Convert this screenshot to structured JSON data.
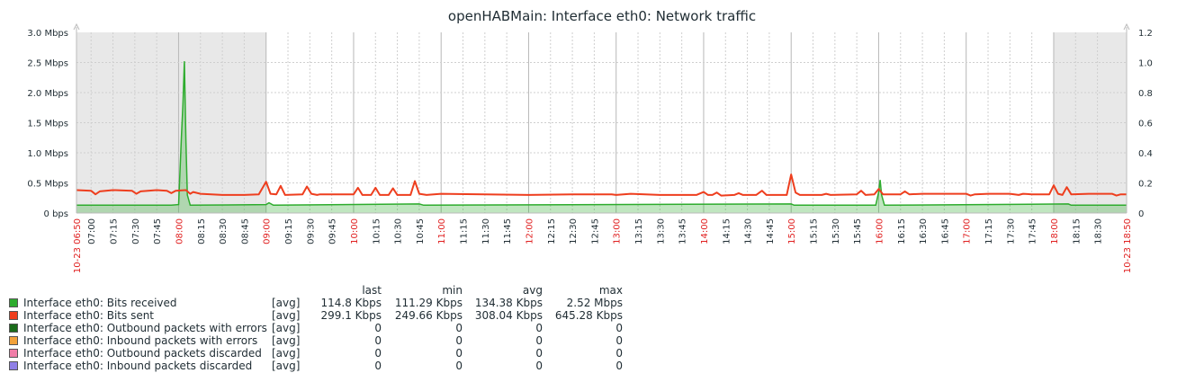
{
  "chart_data": {
    "type": "area",
    "title": "openHABMain: Interface eth0: Network traffic",
    "x_start_label": "10-23 06:50",
    "x_end_label": "10-23 18:50",
    "x_range": [
      "06:50",
      "18:50"
    ],
    "x_ticks": [
      "07:00",
      "07:15",
      "07:30",
      "07:45",
      "08:00",
      "08:15",
      "08:30",
      "08:45",
      "09:00",
      "09:15",
      "09:30",
      "09:45",
      "10:00",
      "10:15",
      "10:30",
      "10:45",
      "11:00",
      "11:15",
      "11:30",
      "11:45",
      "12:00",
      "12:15",
      "12:30",
      "12:45",
      "13:00",
      "13:15",
      "13:30",
      "13:45",
      "14:00",
      "14:15",
      "14:30",
      "14:45",
      "15:00",
      "15:15",
      "15:30",
      "15:45",
      "16:00",
      "16:15",
      "16:30",
      "16:45",
      "17:00",
      "17:15",
      "17:30",
      "17:45",
      "18:00",
      "18:15",
      "18:30"
    ],
    "x_ticks_highlighted": [
      "08:00",
      "09:00",
      "10:00",
      "11:00",
      "12:00",
      "13:00",
      "14:00",
      "15:00",
      "16:00",
      "17:00",
      "18:00"
    ],
    "y_left": {
      "unit": "Mbps",
      "range": [
        0,
        3.0
      ],
      "ticks": [
        "0 bps",
        "0.5 Mbps",
        "1.0 Mbps",
        "1.5 Mbps",
        "2.0 Mbps",
        "2.5 Mbps",
        "3.0 Mbps"
      ]
    },
    "y_right": {
      "range": [
        0,
        1.2
      ],
      "ticks": [
        "0",
        "0.2",
        "0.4",
        "0.6",
        "0.8",
        "1.0",
        "1.2"
      ]
    },
    "shaded_periods": [
      [
        "06:50",
        "09:00"
      ],
      [
        "18:00",
        "18:50"
      ]
    ],
    "grid": true,
    "series": [
      {
        "name": "Interface eth0: Bits received",
        "color": "#2eac2e",
        "style": "filled",
        "points": [
          [
            "06:50",
            0.13
          ],
          [
            "07:30",
            0.13
          ],
          [
            "07:55",
            0.13
          ],
          [
            "08:00",
            0.14
          ],
          [
            "08:02",
            1.3
          ],
          [
            "08:03",
            1.8
          ],
          [
            "08:04",
            2.52
          ],
          [
            "08:05",
            1.2
          ],
          [
            "08:06",
            0.3
          ],
          [
            "08:08",
            0.13
          ],
          [
            "09:00",
            0.14
          ],
          [
            "09:02",
            0.17
          ],
          [
            "09:05",
            0.13
          ],
          [
            "10:45",
            0.15
          ],
          [
            "10:48",
            0.13
          ],
          [
            "15:00",
            0.15
          ],
          [
            "15:02",
            0.13
          ],
          [
            "15:58",
            0.13
          ],
          [
            "16:00",
            0.35
          ],
          [
            "16:01",
            0.55
          ],
          [
            "16:02",
            0.3
          ],
          [
            "16:04",
            0.13
          ],
          [
            "18:10",
            0.15
          ],
          [
            "18:12",
            0.13
          ],
          [
            "18:50",
            0.13
          ]
        ]
      },
      {
        "name": "Interface eth0: Bits sent",
        "color": "#ee3e1e",
        "style": "line",
        "points": [
          [
            "06:50",
            0.38
          ],
          [
            "07:00",
            0.37
          ],
          [
            "07:03",
            0.31
          ],
          [
            "07:06",
            0.36
          ],
          [
            "07:15",
            0.38
          ],
          [
            "07:28",
            0.37
          ],
          [
            "07:31",
            0.32
          ],
          [
            "07:34",
            0.36
          ],
          [
            "07:45",
            0.38
          ],
          [
            "07:52",
            0.37
          ],
          [
            "07:55",
            0.33
          ],
          [
            "07:58",
            0.37
          ],
          [
            "08:05",
            0.38
          ],
          [
            "08:08",
            0.32
          ],
          [
            "08:10",
            0.35
          ],
          [
            "08:15",
            0.32
          ],
          [
            "08:30",
            0.3
          ],
          [
            "08:45",
            0.3
          ],
          [
            "08:55",
            0.31
          ],
          [
            "09:00",
            0.52
          ],
          [
            "09:03",
            0.32
          ],
          [
            "09:07",
            0.31
          ],
          [
            "09:10",
            0.45
          ],
          [
            "09:13",
            0.3
          ],
          [
            "09:25",
            0.31
          ],
          [
            "09:28",
            0.44
          ],
          [
            "09:31",
            0.32
          ],
          [
            "09:35",
            0.3
          ],
          [
            "09:37",
            0.31
          ],
          [
            "10:00",
            0.31
          ],
          [
            "10:03",
            0.42
          ],
          [
            "10:06",
            0.3
          ],
          [
            "10:12",
            0.3
          ],
          [
            "10:15",
            0.42
          ],
          [
            "10:18",
            0.3
          ],
          [
            "10:24",
            0.3
          ],
          [
            "10:27",
            0.41
          ],
          [
            "10:30",
            0.3
          ],
          [
            "10:39",
            0.3
          ],
          [
            "10:42",
            0.53
          ],
          [
            "10:45",
            0.32
          ],
          [
            "10:50",
            0.3
          ],
          [
            "11:00",
            0.32
          ],
          [
            "11:30",
            0.31
          ],
          [
            "12:00",
            0.3
          ],
          [
            "12:30",
            0.31
          ],
          [
            "12:57",
            0.31
          ],
          [
            "13:00",
            0.3
          ],
          [
            "13:10",
            0.32
          ],
          [
            "13:30",
            0.3
          ],
          [
            "13:55",
            0.3
          ],
          [
            "14:00",
            0.35
          ],
          [
            "14:03",
            0.3
          ],
          [
            "14:06",
            0.3
          ],
          [
            "14:09",
            0.34
          ],
          [
            "14:12",
            0.29
          ],
          [
            "14:21",
            0.3
          ],
          [
            "14:24",
            0.33
          ],
          [
            "14:27",
            0.3
          ],
          [
            "14:36",
            0.3
          ],
          [
            "14:40",
            0.37
          ],
          [
            "14:43",
            0.3
          ],
          [
            "14:57",
            0.3
          ],
          [
            "15:00",
            0.64
          ],
          [
            "15:03",
            0.34
          ],
          [
            "15:06",
            0.3
          ],
          [
            "15:21",
            0.3
          ],
          [
            "15:24",
            0.32
          ],
          [
            "15:27",
            0.3
          ],
          [
            "15:45",
            0.31
          ],
          [
            "15:48",
            0.37
          ],
          [
            "15:51",
            0.3
          ],
          [
            "15:57",
            0.31
          ],
          [
            "16:00",
            0.4
          ],
          [
            "16:03",
            0.31
          ],
          [
            "16:15",
            0.31
          ],
          [
            "16:18",
            0.36
          ],
          [
            "16:21",
            0.31
          ],
          [
            "16:30",
            0.32
          ],
          [
            "16:45",
            0.32
          ],
          [
            "17:00",
            0.32
          ],
          [
            "17:03",
            0.29
          ],
          [
            "17:06",
            0.31
          ],
          [
            "17:15",
            0.32
          ],
          [
            "17:30",
            0.32
          ],
          [
            "17:36",
            0.3
          ],
          [
            "17:39",
            0.32
          ],
          [
            "17:45",
            0.31
          ],
          [
            "17:57",
            0.31
          ],
          [
            "18:00",
            0.46
          ],
          [
            "18:03",
            0.32
          ],
          [
            "18:06",
            0.3
          ],
          [
            "18:09",
            0.43
          ],
          [
            "18:12",
            0.31
          ],
          [
            "18:24",
            0.32
          ],
          [
            "18:30",
            0.32
          ],
          [
            "18:40",
            0.32
          ],
          [
            "18:43",
            0.29
          ],
          [
            "18:46",
            0.31
          ],
          [
            "18:50",
            0.31
          ]
        ]
      }
    ]
  },
  "legend": {
    "columns": {
      "last": "last",
      "min": "min",
      "avg": "avg",
      "max": "max"
    },
    "items": [
      {
        "color": "#2eac2e",
        "name": "Interface eth0: Bits received",
        "fn": "[avg]",
        "last": "114.8 Kbps",
        "min": "111.29 Kbps",
        "avg": "134.38 Kbps",
        "max": "2.52 Mbps"
      },
      {
        "color": "#ee3e1e",
        "name": "Interface eth0: Bits sent",
        "fn": "[avg]",
        "last": "299.1 Kbps",
        "min": "249.66 Kbps",
        "avg": "308.04 Kbps",
        "max": "645.28 Kbps"
      },
      {
        "color": "#1a6b1a",
        "name": "Interface eth0: Outbound packets with errors",
        "fn": "[avg]",
        "last": "0",
        "min": "0",
        "avg": "0",
        "max": "0"
      },
      {
        "color": "#f2a23a",
        "name": "Interface eth0: Inbound packets with errors",
        "fn": "[avg]",
        "last": "0",
        "min": "0",
        "avg": "0",
        "max": "0"
      },
      {
        "color": "#f07ea8",
        "name": "Interface eth0: Outbound packets discarded",
        "fn": "[avg]",
        "last": "0",
        "min": "0",
        "avg": "0",
        "max": "0"
      },
      {
        "color": "#8f7fe6",
        "name": "Interface eth0: Inbound packets discarded",
        "fn": "[avg]",
        "last": "0",
        "min": "0",
        "avg": "0",
        "max": "0"
      }
    ]
  }
}
